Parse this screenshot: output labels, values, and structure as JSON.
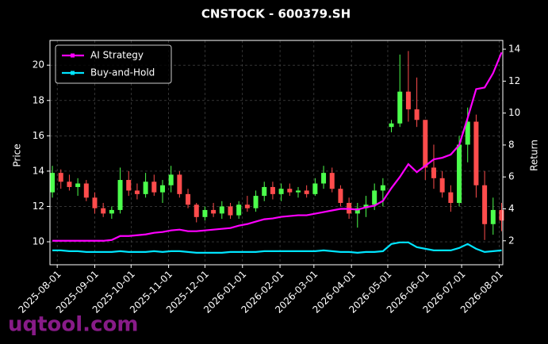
{
  "chart_data": {
    "type": "candlestick",
    "title": "CNSTOCK - 600379.SH",
    "ylabel": "Price",
    "y2label": "Return",
    "watermark": "uqtool.com",
    "x": [
      "2025-07-28",
      "2025-08-04",
      "2025-08-11",
      "2025-08-18",
      "2025-08-25",
      "2025-09-01",
      "2025-09-08",
      "2025-09-15",
      "2025-09-22",
      "2025-09-29",
      "2025-10-06",
      "2025-10-13",
      "2025-10-20",
      "2025-10-27",
      "2025-11-03",
      "2025-11-10",
      "2025-11-17",
      "2025-11-24",
      "2025-12-01",
      "2025-12-08",
      "2025-12-15",
      "2025-12-22",
      "2025-12-29",
      "2026-01-05",
      "2026-01-12",
      "2026-01-19",
      "2026-01-26",
      "2026-02-02",
      "2026-02-09",
      "2026-02-16",
      "2026-02-23",
      "2026-03-02",
      "2026-03-09",
      "2026-03-16",
      "2026-03-23",
      "2026-03-30",
      "2026-04-06",
      "2026-04-13",
      "2026-04-20",
      "2026-04-27",
      "2026-05-04",
      "2026-05-11",
      "2026-05-18",
      "2026-05-25",
      "2026-06-01",
      "2026-06-08",
      "2026-06-15",
      "2026-06-22",
      "2026-06-29",
      "2026-07-06",
      "2026-07-13",
      "2026-07-20",
      "2026-07-27",
      "2026-08-03"
    ],
    "candles": {
      "up_color": "#4cff4c",
      "down_color": "#ff4c4c",
      "open": [
        12.8,
        13.9,
        13.4,
        13.1,
        13.3,
        12.5,
        11.9,
        11.6,
        11.8,
        13.5,
        12.9,
        12.7,
        13.4,
        12.8,
        13.2,
        13.8,
        12.7,
        12.1,
        11.4,
        11.8,
        11.6,
        12.0,
        11.5,
        12.1,
        11.9,
        12.6,
        13.1,
        12.7,
        13.0,
        12.8,
        12.9,
        12.7,
        13.3,
        13.9,
        13.0,
        12.2,
        11.6,
        11.9,
        12.1,
        12.9,
        16.5,
        16.7,
        18.5,
        17.5,
        16.9,
        14.2,
        13.6,
        12.8,
        12.2,
        15.5,
        16.8,
        13.2,
        11.0,
        11.8
      ],
      "high": [
        14.3,
        14.1,
        13.8,
        13.6,
        13.5,
        12.8,
        12.2,
        12.0,
        14.2,
        14.0,
        13.3,
        13.9,
        13.8,
        13.5,
        14.3,
        14.0,
        13.0,
        12.2,
        12.0,
        12.2,
        12.3,
        12.2,
        12.3,
        12.6,
        12.9,
        13.4,
        13.4,
        13.3,
        13.3,
        13.1,
        13.2,
        13.6,
        14.3,
        14.2,
        13.2,
        12.5,
        12.2,
        12.6,
        13.3,
        13.6,
        16.9,
        20.6,
        20.8,
        19.3,
        16.9,
        15.5,
        14.0,
        13.2,
        16.0,
        17.6,
        17.2,
        14.0,
        12.5,
        12.2
      ],
      "low": [
        12.5,
        13.0,
        12.9,
        12.6,
        12.3,
        11.6,
        11.4,
        11.3,
        11.6,
        12.6,
        12.4,
        12.5,
        12.6,
        12.2,
        12.8,
        12.5,
        11.9,
        11.1,
        11.2,
        11.4,
        11.3,
        11.3,
        11.3,
        11.7,
        11.7,
        12.3,
        12.4,
        12.3,
        12.6,
        12.5,
        12.5,
        12.6,
        13.0,
        12.8,
        12.0,
        11.3,
        10.8,
        11.4,
        11.8,
        12.0,
        16.2,
        16.5,
        16.8,
        16.5,
        13.5,
        13.0,
        12.5,
        11.7,
        12.0,
        14.5,
        12.5,
        10.1,
        10.4,
        10.6
      ],
      "close": [
        13.9,
        13.4,
        13.1,
        13.3,
        12.5,
        11.9,
        11.6,
        11.8,
        13.5,
        12.9,
        12.7,
        13.4,
        12.8,
        13.2,
        13.8,
        12.7,
        12.1,
        11.4,
        11.8,
        11.6,
        12.0,
        11.5,
        12.1,
        11.9,
        12.6,
        13.1,
        12.7,
        13.0,
        12.8,
        12.9,
        12.7,
        13.3,
        13.9,
        13.0,
        12.2,
        11.6,
        11.9,
        12.1,
        12.9,
        13.2,
        16.7,
        18.5,
        17.5,
        16.9,
        14.2,
        13.6,
        12.8,
        12.2,
        15.5,
        16.8,
        13.2,
        11.0,
        11.8,
        11.2
      ]
    },
    "series": [
      {
        "name": "AI Strategy",
        "color": "#ff00ff",
        "axis": "y2",
        "values": [
          2.0,
          2.0,
          2.0,
          2.0,
          2.0,
          2.0,
          2.0,
          2.05,
          2.3,
          2.3,
          2.35,
          2.4,
          2.5,
          2.55,
          2.65,
          2.7,
          2.6,
          2.6,
          2.65,
          2.7,
          2.75,
          2.8,
          2.95,
          3.05,
          3.2,
          3.35,
          3.4,
          3.5,
          3.55,
          3.6,
          3.6,
          3.7,
          3.8,
          3.9,
          4.0,
          4.0,
          3.95,
          4.1,
          4.2,
          4.5,
          5.3,
          6.0,
          6.8,
          6.3,
          6.7,
          7.1,
          7.2,
          7.4,
          8.0,
          9.7,
          11.5,
          11.6,
          12.5,
          13.8
        ]
      },
      {
        "name": "Buy-and-Hold",
        "color": "#00e5ff",
        "axis": "y2",
        "values": [
          1.4,
          1.4,
          1.35,
          1.35,
          1.3,
          1.3,
          1.3,
          1.3,
          1.35,
          1.3,
          1.3,
          1.3,
          1.35,
          1.3,
          1.35,
          1.35,
          1.3,
          1.25,
          1.25,
          1.25,
          1.25,
          1.3,
          1.3,
          1.3,
          1.3,
          1.35,
          1.35,
          1.35,
          1.35,
          1.35,
          1.35,
          1.35,
          1.4,
          1.35,
          1.3,
          1.3,
          1.25,
          1.3,
          1.3,
          1.35,
          1.8,
          1.9,
          1.9,
          1.6,
          1.5,
          1.4,
          1.4,
          1.4,
          1.55,
          1.8,
          1.5,
          1.3,
          1.35,
          1.4
        ]
      }
    ],
    "xlim": [
      "2025-07-26",
      "2026-08-04"
    ],
    "xticks": [
      "2025-08-01",
      "2025-09-01",
      "2025-10-01",
      "2025-11-01",
      "2025-12-01",
      "2026-01-01",
      "2026-02-01",
      "2026-03-01",
      "2026-04-01",
      "2026-05-01",
      "2026-06-01",
      "2026-07-01",
      "2026-08-01"
    ],
    "ylim": [
      8.7,
      21.4
    ],
    "yticks": [
      10,
      12,
      14,
      16,
      18,
      20
    ],
    "y2lim": [
      0.5,
      14.55
    ],
    "y2ticks": [
      2,
      4,
      6,
      8,
      10,
      12,
      14
    ],
    "grid": true,
    "legend": "upper-left"
  }
}
